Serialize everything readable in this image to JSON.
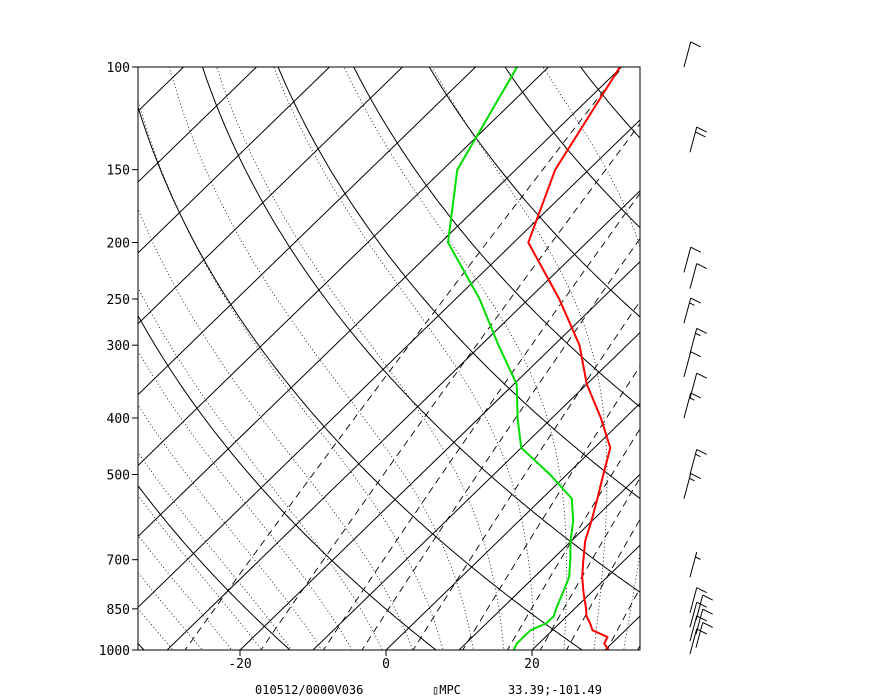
{
  "chart_data": {
    "type": "line",
    "chart_kind": "skew-T log-P sounding",
    "pressure_levels": [
      100,
      150,
      200,
      250,
      300,
      400,
      500,
      700,
      850,
      1000
    ],
    "pressure_tick_labels": [
      "100",
      "150",
      "200",
      "250",
      "300",
      "400",
      "500",
      "700",
      "850",
      "1000"
    ],
    "temperature_ticks": [
      -20,
      0,
      20
    ],
    "temperature_tick_labels": [
      "-20",
      "0",
      "20"
    ],
    "ylim": [
      1000,
      100
    ],
    "xlim": [
      -34,
      35
    ],
    "y_scale": "log",
    "skewed_isotherms": true,
    "grid": true,
    "series": [
      {
        "color": "#ff0000",
        "points": [
          [
            1000,
            30.5
          ],
          [
            975,
            29.0
          ],
          [
            950,
            28.5
          ],
          [
            925,
            25.5
          ],
          [
            900,
            24.2
          ],
          [
            875,
            22.7
          ],
          [
            850,
            21.6
          ],
          [
            800,
            19.1
          ],
          [
            750,
            16.6
          ],
          [
            700,
            14.3
          ],
          [
            650,
            11.9
          ],
          [
            600,
            9.9
          ],
          [
            550,
            7.6
          ],
          [
            500,
            5.0
          ],
          [
            450,
            2.2
          ],
          [
            400,
            -3.3
          ],
          [
            350,
            -10.0
          ],
          [
            300,
            -16.5
          ],
          [
            250,
            -25.8
          ],
          [
            200,
            -38.0
          ],
          [
            150,
            -44.6
          ],
          [
            100,
            -50.2
          ]
        ]
      },
      {
        "color": "#00dd00",
        "points": [
          [
            1000,
            17.5
          ],
          [
            975,
            17.0
          ],
          [
            950,
            17.0
          ],
          [
            925,
            17.0
          ],
          [
            900,
            18.2
          ],
          [
            875,
            18.2
          ],
          [
            850,
            17.5
          ],
          [
            800,
            16.2
          ],
          [
            750,
            14.8
          ],
          [
            700,
            12.5
          ],
          [
            650,
            9.9
          ],
          [
            600,
            7.4
          ],
          [
            550,
            4.1
          ],
          [
            500,
            -2.3
          ],
          [
            450,
            -10.0
          ],
          [
            400,
            -14.7
          ],
          [
            350,
            -19.6
          ],
          [
            300,
            -27.6
          ],
          [
            250,
            -36.7
          ],
          [
            200,
            -49.0
          ],
          [
            150,
            -58.0
          ],
          [
            100,
            -64.3
          ]
        ]
      }
    ],
    "wind_barbs": [
      {
        "pressure": 1000,
        "speed_kt": 10
      },
      {
        "pressure": 975,
        "speed_kt": 10
      },
      {
        "pressure": 950,
        "speed_kt": 10
      },
      {
        "pressure": 925,
        "speed_kt": 10
      },
      {
        "pressure": 900,
        "speed_kt": 10
      },
      {
        "pressure": 875,
        "speed_kt": 10
      },
      {
        "pressure": 850,
        "speed_kt": 10
      },
      {
        "pressure": 750,
        "speed_kt": 5
      },
      {
        "pressure": 550,
        "speed_kt": 15
      },
      {
        "pressure": 500,
        "speed_kt": 15
      },
      {
        "pressure": 400,
        "speed_kt": 15
      },
      {
        "pressure": 370,
        "speed_kt": 10
      },
      {
        "pressure": 340,
        "speed_kt": 10
      },
      {
        "pressure": 310,
        "speed_kt": 15
      },
      {
        "pressure": 275,
        "speed_kt": 15
      },
      {
        "pressure": 240,
        "speed_kt": 10
      },
      {
        "pressure": 225,
        "speed_kt": 10
      },
      {
        "pressure": 140,
        "speed_kt": 20
      },
      {
        "pressure": 100,
        "speed_kt": 10
      }
    ]
  },
  "footer": {
    "run_valid": "010512/0000V036",
    "source": "▯MPC",
    "location": "33.39;-101.49"
  }
}
